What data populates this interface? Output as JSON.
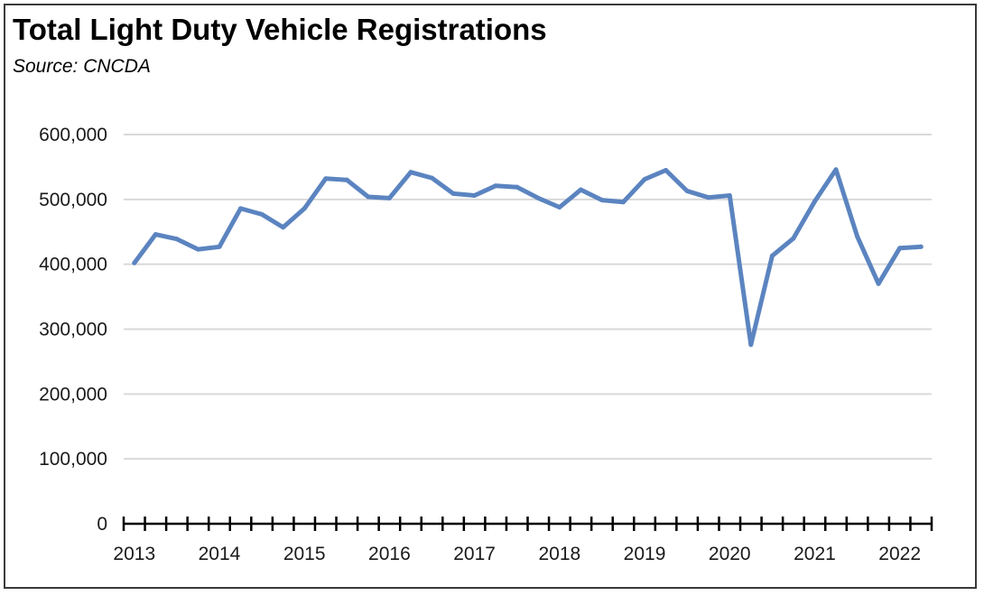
{
  "chart_data": {
    "type": "line",
    "title": "Total Light Duty Vehicle Registrations",
    "subtitle": "Source: CNCDA",
    "xlabel": "",
    "ylabel": "",
    "ylim": [
      0,
      600000
    ],
    "yticks": [
      0,
      100000,
      200000,
      300000,
      400000,
      500000,
      600000
    ],
    "ytick_labels": [
      "0",
      "100,000",
      "200,000",
      "300,000",
      "400,000",
      "500,000",
      "600,000"
    ],
    "xtick_labels": [
      "2013",
      "2014",
      "2015",
      "2016",
      "2017",
      "2018",
      "2019",
      "2020",
      "2021",
      "2022"
    ],
    "grid": "horizontal",
    "color": "#5b84c0",
    "x": [
      "2013 Q1",
      "2013 Q2",
      "2013 Q3",
      "2013 Q4",
      "2014 Q1",
      "2014 Q2",
      "2014 Q3",
      "2014 Q4",
      "2015 Q1",
      "2015 Q2",
      "2015 Q3",
      "2015 Q4",
      "2016 Q1",
      "2016 Q2",
      "2016 Q3",
      "2016 Q4",
      "2017 Q1",
      "2017 Q2",
      "2017 Q3",
      "2017 Q4",
      "2018 Q1",
      "2018 Q2",
      "2018 Q3",
      "2018 Q4",
      "2019 Q1",
      "2019 Q2",
      "2019 Q3",
      "2019 Q4",
      "2020 Q1",
      "2020 Q2",
      "2020 Q3",
      "2020 Q4",
      "2021 Q1",
      "2021 Q2",
      "2021 Q3",
      "2021 Q4",
      "2022 Q1",
      "2022 Q2"
    ],
    "values": [
      402000,
      446000,
      439000,
      423000,
      427000,
      486000,
      477000,
      457000,
      486000,
      532000,
      530000,
      504000,
      502000,
      542000,
      533000,
      509000,
      506000,
      521000,
      519000,
      502000,
      488000,
      515000,
      499000,
      496000,
      531000,
      545000,
      513000,
      503000,
      506000,
      276000,
      413000,
      440000,
      497000,
      546000,
      443000,
      370000,
      425000,
      427000
    ]
  }
}
